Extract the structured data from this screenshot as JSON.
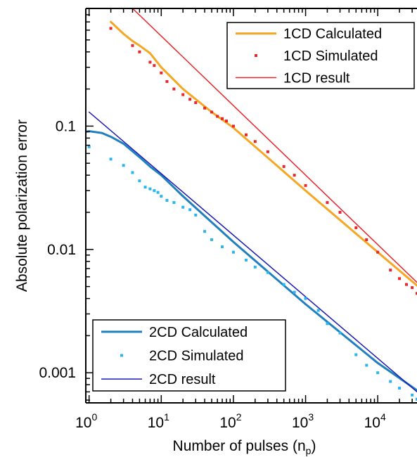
{
  "chart_data": {
    "type": "line",
    "xscale": "log",
    "yscale": "log",
    "xlim": [
      0.9,
      35000
    ],
    "ylim": [
      0.00057,
      0.9
    ],
    "xlabel": "Number of pulses (n",
    "xlabel_sub": "p",
    "xlabel_end": ")",
    "ylabel": "Absolute polarization error",
    "x_ticks": [
      {
        "value": 1,
        "base": "10",
        "exp": "0"
      },
      {
        "value": 10,
        "base": "10",
        "exp": "1"
      },
      {
        "value": 100,
        "base": "10",
        "exp": "2"
      },
      {
        "value": 1000,
        "base": "10",
        "exp": "3"
      },
      {
        "value": 10000,
        "base": "10",
        "exp": "4"
      }
    ],
    "y_ticks": [
      {
        "value": 0.1,
        "label": "0.1"
      },
      {
        "value": 0.01,
        "label": "0.01"
      },
      {
        "value": 0.001,
        "label": "0.001"
      }
    ],
    "grid": false,
    "legends": [
      {
        "placement": "top-right",
        "entries": [
          {
            "series": "1CD Calculated"
          },
          {
            "series": "1CD Simulated"
          },
          {
            "series": "1CD result"
          }
        ]
      },
      {
        "placement": "bottom-left",
        "entries": [
          {
            "series": "2CD Calculated"
          },
          {
            "series": "2CD Simulated"
          },
          {
            "series": "2CD result"
          }
        ]
      }
    ],
    "series": [
      {
        "name": "1CD Calculated",
        "style": "line",
        "color": "#F5A623",
        "width": 3,
        "x": [
          2,
          3,
          4,
          5,
          7,
          10,
          20,
          50,
          100,
          1000,
          10000,
          35000
        ],
        "y": [
          0.7,
          0.56,
          0.49,
          0.45,
          0.39,
          0.3,
          0.2,
          0.13,
          0.097,
          0.03,
          0.0095,
          0.0051
        ]
      },
      {
        "name": "1CD Simulated",
        "style": "points",
        "color": "#E8262B",
        "size": 4,
        "x": [
          2,
          4,
          5,
          7,
          8,
          10,
          12,
          15,
          20,
          25,
          30,
          40,
          50,
          60,
          70,
          80,
          100,
          150,
          200,
          300,
          500,
          700,
          1000,
          2000,
          3000,
          5000,
          7000,
          10000,
          15000,
          20000,
          25000,
          30000,
          35000
        ],
        "y": [
          0.62,
          0.45,
          0.4,
          0.33,
          0.31,
          0.27,
          0.23,
          0.2,
          0.18,
          0.165,
          0.155,
          0.14,
          0.13,
          0.12,
          0.115,
          0.11,
          0.1,
          0.085,
          0.075,
          0.062,
          0.047,
          0.04,
          0.033,
          0.024,
          0.02,
          0.015,
          0.012,
          0.0095,
          0.0068,
          0.0058,
          0.0052,
          0.0049,
          0.0044
        ]
      },
      {
        "name": "1CD result",
        "style": "line",
        "color": "#E8262B",
        "width": 1.5,
        "x": [
          4,
          35000
        ],
        "y": [
          0.9,
          0.0054
        ]
      },
      {
        "name": "2CD Calculated",
        "style": "line",
        "color": "#1F7FBF",
        "width": 3,
        "x": [
          0.9,
          1,
          1.5,
          2,
          3,
          5,
          7,
          10,
          20,
          100,
          1000,
          10000,
          35000
        ],
        "y": [
          0.09,
          0.091,
          0.088,
          0.082,
          0.072,
          0.056,
          0.047,
          0.04,
          0.027,
          0.0115,
          0.0036,
          0.0012,
          0.00072
        ]
      },
      {
        "name": "2CD Simulated",
        "style": "points",
        "color": "#29B6F0",
        "size": 4,
        "x": [
          1,
          2,
          3,
          4,
          5,
          6,
          7,
          8,
          9,
          10,
          12,
          15,
          20,
          25,
          30,
          40,
          50,
          70,
          100,
          150,
          200,
          300,
          500,
          700,
          1000,
          1500,
          2000,
          3000,
          5000,
          7000,
          10000,
          15000,
          20000,
          30000,
          35000
        ],
        "y": [
          0.068,
          0.054,
          0.048,
          0.042,
          0.036,
          0.032,
          0.031,
          0.03,
          0.029,
          0.027,
          0.025,
          0.024,
          0.022,
          0.021,
          0.019,
          0.014,
          0.012,
          0.0105,
          0.0095,
          0.0082,
          0.0072,
          0.0065,
          0.0052,
          0.0045,
          0.004,
          0.0032,
          0.0025,
          0.0021,
          0.0014,
          0.00115,
          0.001,
          0.00085,
          0.00075,
          0.00066,
          0.00061
        ]
      },
      {
        "name": "2CD result",
        "style": "line",
        "color": "#1A1AB5",
        "width": 1.5,
        "x": [
          1,
          35000
        ],
        "y": [
          0.13,
          0.0007
        ]
      }
    ]
  }
}
